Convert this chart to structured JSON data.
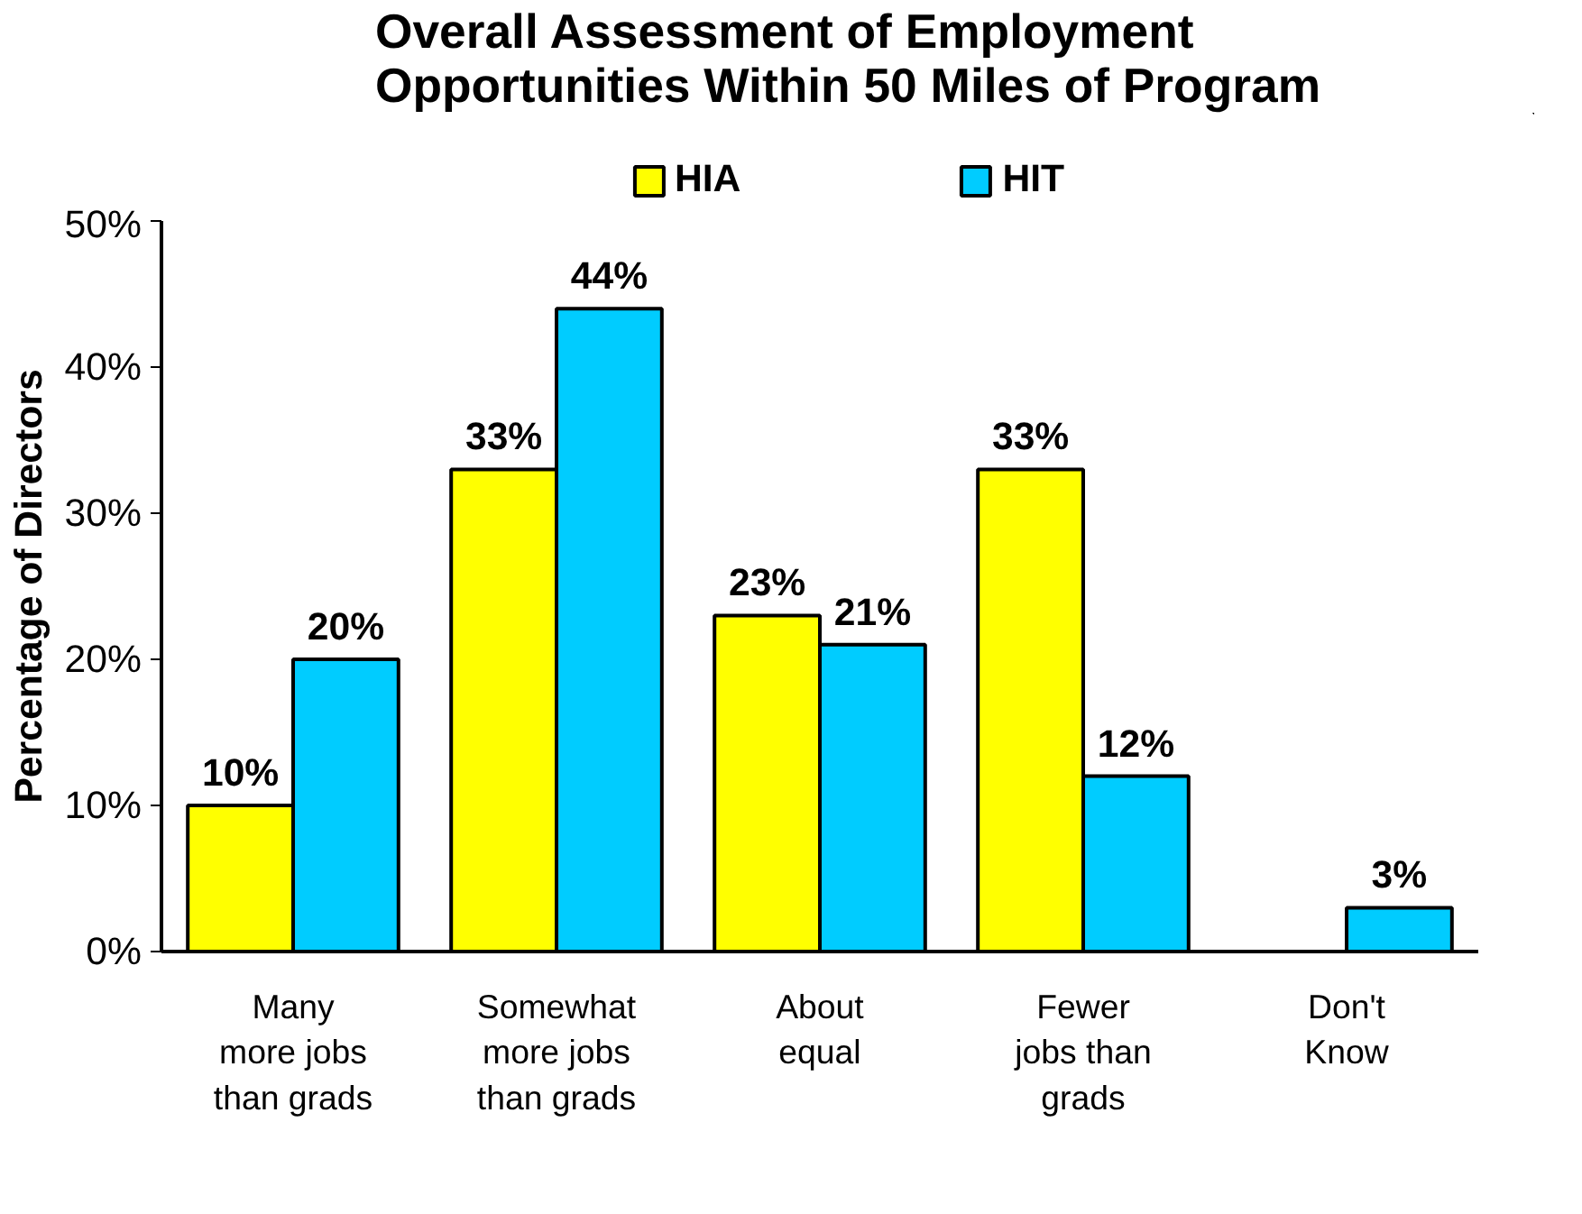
{
  "chart_data": {
    "type": "bar",
    "title": "Overall Assessment of Employment\nOpportunities Within 50 Miles of Program",
    "ylabel": "Percentage of Directors",
    "categories": [
      "Many\nmore jobs\nthan grads",
      "Somewhat\nmore jobs\nthan grads",
      "About\nequal",
      "Fewer\njobs than\ngrads",
      "Don't\nKnow"
    ],
    "series": [
      {
        "name": "HIA",
        "color": "#ffff00",
        "values": [
          10,
          33,
          23,
          33,
          null
        ],
        "value_labels": [
          "10%",
          "33%",
          "23%",
          "33%",
          null
        ]
      },
      {
        "name": "HIT",
        "color": "#00ccff",
        "values": [
          20,
          44,
          21,
          12,
          3
        ],
        "value_labels": [
          "20%",
          "44%",
          "21%",
          "12%",
          "3%"
        ]
      }
    ],
    "ylim": [
      0,
      50
    ],
    "yticks": [
      {
        "value": 0,
        "label": "0%"
      },
      {
        "value": 10,
        "label": "10%"
      },
      {
        "value": 20,
        "label": "20%"
      },
      {
        "value": 30,
        "label": "30%"
      },
      {
        "value": 40,
        "label": "40%"
      },
      {
        "value": 50,
        "label": "50%"
      }
    ],
    "grid": false,
    "legend": "top"
  }
}
